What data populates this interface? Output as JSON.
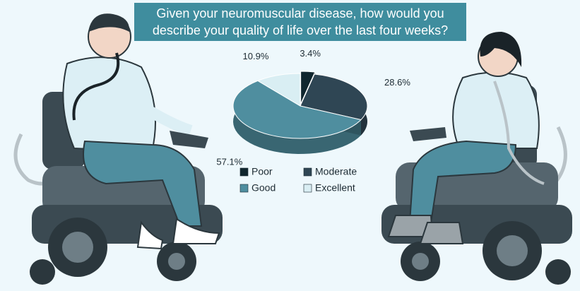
{
  "chart_data": {
    "type": "pie",
    "title": "Given your neuromuscular disease, how would you describe your quality of life over the last four weeks?",
    "categories": [
      "Poor",
      "Moderate",
      "Good",
      "Excellent"
    ],
    "values": [
      3.4,
      28.6,
      57.1,
      10.9
    ],
    "value_labels": [
      "3.4%",
      "28.6%",
      "57.1%",
      "10.9%"
    ],
    "colors": [
      "#10262e",
      "#2f4654",
      "#4f8e9f",
      "#d9eef3"
    ]
  }
}
